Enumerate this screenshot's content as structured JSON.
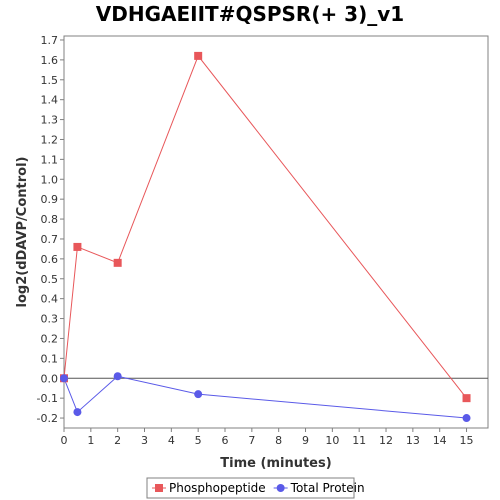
{
  "chart_data": {
    "type": "line",
    "title": "VDHGAEIIT#QSPSR(+ 3)_v1",
    "xlabel": "Time (minutes)",
    "ylabel": "log2(dDAVP/Control)",
    "xlim": [
      0,
      15.8
    ],
    "ylim": [
      -0.25,
      1.72
    ],
    "x_ticks": [
      0,
      1,
      2,
      3,
      4,
      5,
      6,
      7,
      8,
      9,
      10,
      11,
      12,
      13,
      14,
      15
    ],
    "y_ticks": [
      -0.2,
      -0.1,
      0.0,
      0.1,
      0.2,
      0.3,
      0.4,
      0.5,
      0.6,
      0.7,
      0.8,
      0.9,
      1.0,
      1.1,
      1.2,
      1.3,
      1.4,
      1.5,
      1.6,
      1.7
    ],
    "y_tick_labels": [
      "-0.2",
      "-0.1",
      "0.0",
      "0.1",
      "0.2",
      "0.3",
      "0.4",
      "0.5",
      "0.6",
      "0.7",
      "0.8",
      "0.9",
      "1.0",
      "1.1",
      "1.2",
      "1.3",
      "1.4",
      "1.5",
      "1.6",
      "1.7"
    ],
    "zero_line": true,
    "legend_position": "bottom",
    "series": [
      {
        "name": "Phosphopeptide",
        "color": "#e8575a",
        "marker": "square",
        "x": [
          0,
          0.5,
          2,
          5,
          15
        ],
        "y": [
          0.0,
          0.66,
          0.58,
          1.62,
          -0.1
        ]
      },
      {
        "name": "Total Protein",
        "color": "#5a5ae8",
        "marker": "circle",
        "x": [
          0,
          0.5,
          2,
          5,
          15
        ],
        "y": [
          0.0,
          -0.17,
          0.01,
          -0.08,
          -0.2
        ]
      }
    ]
  }
}
